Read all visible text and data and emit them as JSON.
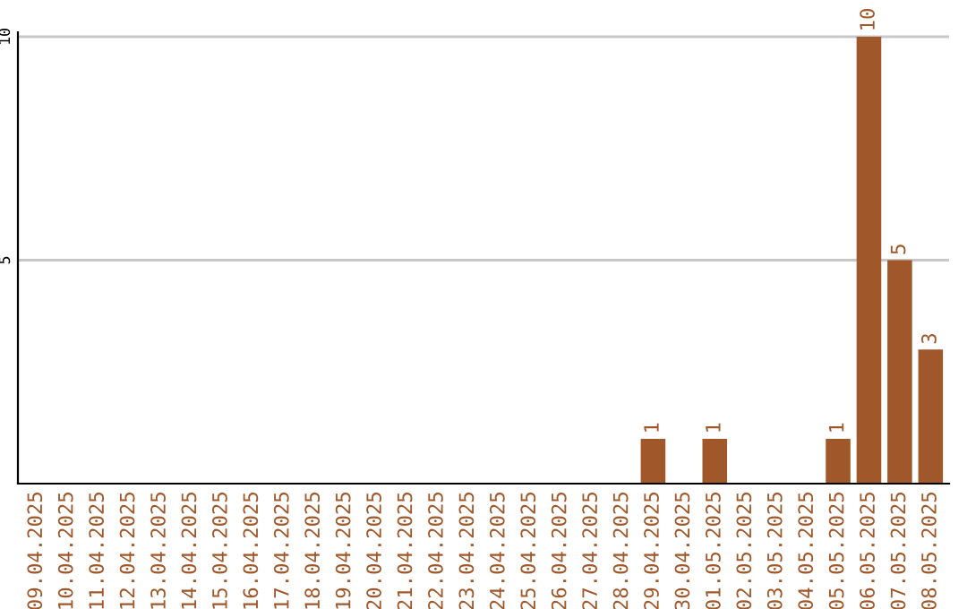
{
  "chart_data": {
    "type": "bar",
    "categories": [
      "09.04.2025",
      "10.04.2025",
      "11.04.2025",
      "12.04.2025",
      "13.04.2025",
      "14.04.2025",
      "15.04.2025",
      "16.04.2025",
      "17.04.2025",
      "18.04.2025",
      "19.04.2025",
      "20.04.2025",
      "21.04.2025",
      "22.04.2025",
      "23.04.2025",
      "24.04.2025",
      "25.04.2025",
      "26.04.2025",
      "27.04.2025",
      "28.04.2025",
      "29.04.2025",
      "30.04.2025",
      "01.05.2025",
      "02.05.2025",
      "03.05.2025",
      "04.05.2025",
      "05.05.2025",
      "06.05.2025",
      "07.05.2025",
      "08.05.2025"
    ],
    "values": [
      0,
      0,
      0,
      0,
      0,
      0,
      0,
      0,
      0,
      0,
      0,
      0,
      0,
      0,
      0,
      0,
      0,
      0,
      0,
      0,
      1,
      0,
      1,
      0,
      0,
      0,
      1,
      10,
      5,
      3
    ],
    "value_labels": [
      null,
      null,
      null,
      null,
      null,
      null,
      null,
      null,
      null,
      null,
      null,
      null,
      null,
      null,
      null,
      null,
      null,
      null,
      null,
      null,
      "1",
      null,
      "1",
      null,
      null,
      null,
      "1",
      "10",
      "5",
      "3"
    ],
    "color": "#a0582a",
    "ylim": [
      0,
      10.1
    ],
    "yticks": [
      5,
      10
    ],
    "grid": "y"
  }
}
